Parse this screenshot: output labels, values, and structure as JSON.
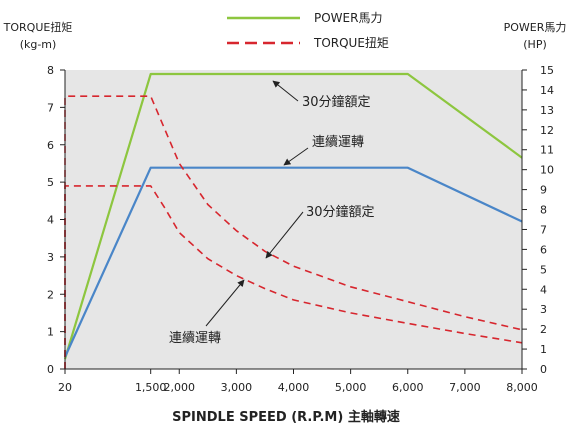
{
  "chart_data": {
    "type": "line",
    "left_axis": {
      "title": "TORQUE扭矩",
      "unit": "(kg-m)",
      "ylim": [
        0,
        8
      ],
      "ticks": [
        "0",
        "1",
        "2",
        "3",
        "4",
        "5",
        "6",
        "7",
        "8"
      ]
    },
    "right_axis": {
      "title": "POWER馬力",
      "unit": "(HP)",
      "ylim": [
        0,
        15
      ],
      "ticks": [
        "0",
        "1",
        "2",
        "3",
        "4",
        "5",
        "6",
        "7",
        "8",
        "9",
        "10",
        "11",
        "12",
        "13",
        "14",
        "15"
      ]
    },
    "x_axis": {
      "title": "SPINDLE SPEED (R.P.M) 主軸轉速",
      "xlim": [
        0,
        8000
      ],
      "ticks": [
        {
          "value": 0,
          "label": "20"
        },
        {
          "value": 1500,
          "label": "1,500"
        },
        {
          "value": 2000,
          "label": "2,000"
        },
        {
          "value": 3000,
          "label": "3,000"
        },
        {
          "value": 4000,
          "label": "4,000"
        },
        {
          "value": 5000,
          "label": "5,000"
        },
        {
          "value": 6000,
          "label": "6,000"
        },
        {
          "value": 7000,
          "label": "7,000"
        },
        {
          "value": 8000,
          "label": "8,000"
        }
      ]
    },
    "legend": [
      {
        "label": "POWER馬力",
        "color": "#8dc63f",
        "style": "solid"
      },
      {
        "label": "TORQUE扭矩",
        "color": "#d7262e",
        "style": "dashed"
      }
    ],
    "series": [
      {
        "axis": "right",
        "color": "#8dc63f",
        "style": "solid",
        "points": [
          [
            0,
            0.5
          ],
          [
            1500,
            14.8
          ],
          [
            6000,
            14.8
          ],
          [
            8000,
            10.6
          ]
        ]
      },
      {
        "axis": "right",
        "color": "#4a86c8",
        "style": "solid",
        "points": [
          [
            0,
            0.6
          ],
          [
            1500,
            10.1
          ],
          [
            6000,
            10.1
          ],
          [
            8000,
            7.4
          ]
        ]
      },
      {
        "axis": "left",
        "color": "#d7262e",
        "style": "dashed",
        "points": [
          [
            0,
            0
          ],
          [
            0,
            7.3
          ],
          [
            1500,
            7.3
          ],
          [
            1750,
            6.4
          ],
          [
            2000,
            5.5
          ],
          [
            2500,
            4.4
          ],
          [
            3000,
            3.7
          ],
          [
            3500,
            3.15
          ],
          [
            4000,
            2.75
          ],
          [
            5000,
            2.2
          ],
          [
            6000,
            1.8
          ],
          [
            7000,
            1.4
          ],
          [
            8000,
            1.05
          ]
        ]
      },
      {
        "axis": "left",
        "color": "#d7262e",
        "style": "dashed",
        "points": [
          [
            0,
            0
          ],
          [
            0,
            4.9
          ],
          [
            1500,
            4.9
          ],
          [
            1750,
            4.3
          ],
          [
            2000,
            3.65
          ],
          [
            2500,
            2.95
          ],
          [
            3000,
            2.5
          ],
          [
            3500,
            2.15
          ],
          [
            4000,
            1.85
          ],
          [
            5000,
            1.5
          ],
          [
            6000,
            1.22
          ],
          [
            7000,
            0.95
          ],
          [
            8000,
            0.7
          ]
        ]
      }
    ],
    "annotations": [
      {
        "text": "30分鐘額定",
        "series": 0
      },
      {
        "text": "連續運轉",
        "series": 1
      },
      {
        "text": "30分鐘額定",
        "series": 2
      },
      {
        "text": "連續運轉",
        "series": 3
      }
    ]
  }
}
